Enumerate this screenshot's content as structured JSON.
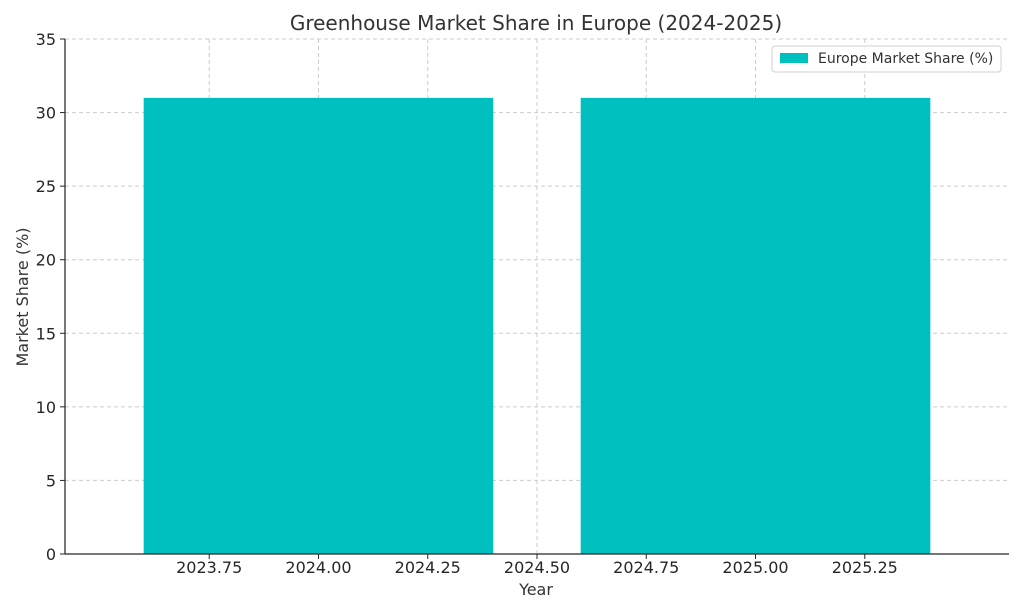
{
  "chart_data": {
    "type": "bar",
    "title": "Greenhouse Market Share in Europe (2024-2025)",
    "xlabel": "Year",
    "ylabel": "Market Share (%)",
    "x": [
      2024,
      2025
    ],
    "bar_width": 0.8,
    "series": [
      {
        "name": "Europe Market Share (%)",
        "values": [
          31,
          31
        ],
        "color": "#00BFBF"
      }
    ],
    "xlim": [
      2023.42,
      2025.58
    ],
    "ylim": [
      0,
      35
    ],
    "x_ticks": [
      2023.75,
      2024.0,
      2024.25,
      2024.5,
      2024.75,
      2025.0,
      2025.25
    ],
    "x_tick_labels": [
      "2023.75",
      "2024.00",
      "2024.25",
      "2024.50",
      "2024.75",
      "2025.00",
      "2025.25"
    ],
    "y_ticks": [
      0,
      5,
      10,
      15,
      20,
      25,
      30,
      35
    ],
    "y_tick_labels": [
      "0",
      "5",
      "10",
      "15",
      "20",
      "25",
      "30",
      "35"
    ],
    "grid": true,
    "legend_position": "top-right"
  }
}
